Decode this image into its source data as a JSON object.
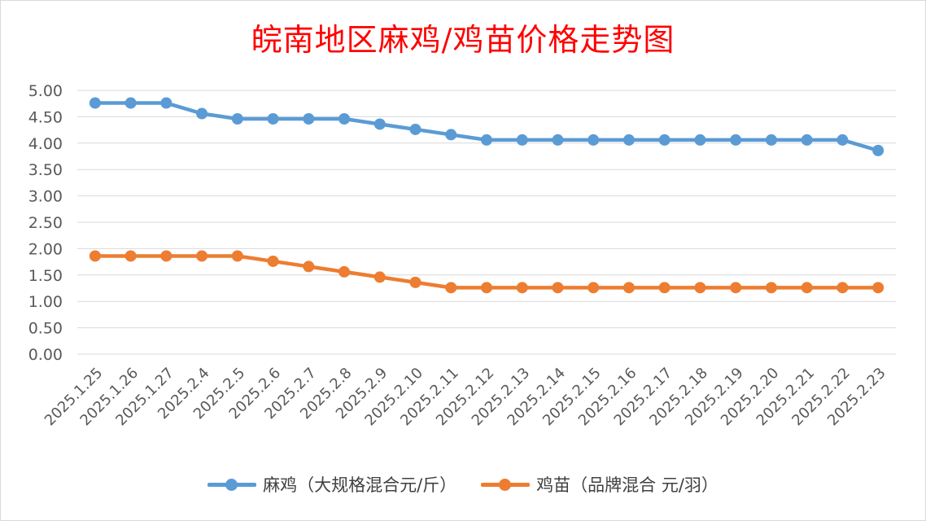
{
  "title": "皖南地区麻鸡/鸡苗价格走势图",
  "chart_data": {
    "type": "line",
    "title": "皖南地区麻鸡/鸡苗价格走势图",
    "xlabel": "",
    "ylabel": "",
    "ylim": [
      0,
      5
    ],
    "yticks": [
      "0.00",
      "0.50",
      "1.00",
      "1.50",
      "2.00",
      "2.50",
      "3.00",
      "3.50",
      "4.00",
      "4.50",
      "5.00"
    ],
    "grid": true,
    "legend_position": "bottom",
    "categories": [
      "2025.1.25",
      "2025.1.26",
      "2025.1.27",
      "2025.2.4",
      "2025.2.5",
      "2025.2.6",
      "2025.2.7",
      "2025.2.8",
      "2025.2.9",
      "2025.2.10",
      "2025.2.11",
      "2025.2.12",
      "2025.2.13",
      "2025.2.14",
      "2025.2.15",
      "2025.2.16",
      "2025.2.17",
      "2025.2.18",
      "2025.2.19",
      "2025.2.20",
      "2025.2.21",
      "2025.2.22",
      "2025.2.23"
    ],
    "series": [
      {
        "name": "麻鸡（大规格混合元/斤）",
        "color": "#5b9bd5",
        "values": [
          4.76,
          4.76,
          4.76,
          4.56,
          4.46,
          4.46,
          4.46,
          4.46,
          4.36,
          4.26,
          4.16,
          4.06,
          4.06,
          4.06,
          4.06,
          4.06,
          4.06,
          4.06,
          4.06,
          4.06,
          4.06,
          4.06,
          3.86
        ]
      },
      {
        "name": "鸡苗（品牌混合 元/羽）",
        "color": "#ed7d31",
        "values": [
          1.86,
          1.86,
          1.86,
          1.86,
          1.86,
          1.76,
          1.66,
          1.56,
          1.46,
          1.36,
          1.26,
          1.26,
          1.26,
          1.26,
          1.26,
          1.26,
          1.26,
          1.26,
          1.26,
          1.26,
          1.26,
          1.26,
          1.26
        ]
      }
    ]
  }
}
